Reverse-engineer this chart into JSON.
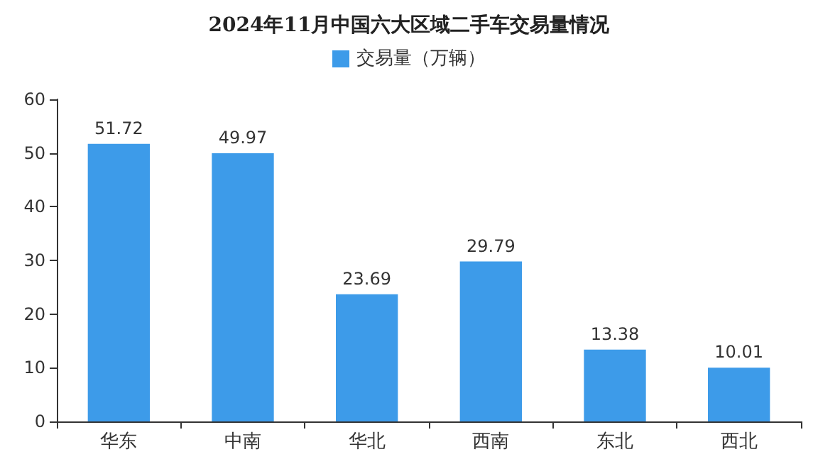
{
  "chart_data": {
    "type": "bar",
    "title": "2024年11月中国六大区域二手车交易量情况",
    "categories": [
      "华东",
      "中南",
      "华北",
      "西南",
      "东北",
      "西北"
    ],
    "series": [
      {
        "name": "交易量（万辆）",
        "color": "#3d9be9",
        "values": [
          51.72,
          49.97,
          23.69,
          29.79,
          13.38,
          10.01
        ]
      }
    ],
    "ylim": [
      0,
      60
    ],
    "yticks": [
      0,
      10,
      20,
      30,
      40,
      50,
      60
    ],
    "grid": false,
    "legend": "top",
    "data_labels": true
  }
}
